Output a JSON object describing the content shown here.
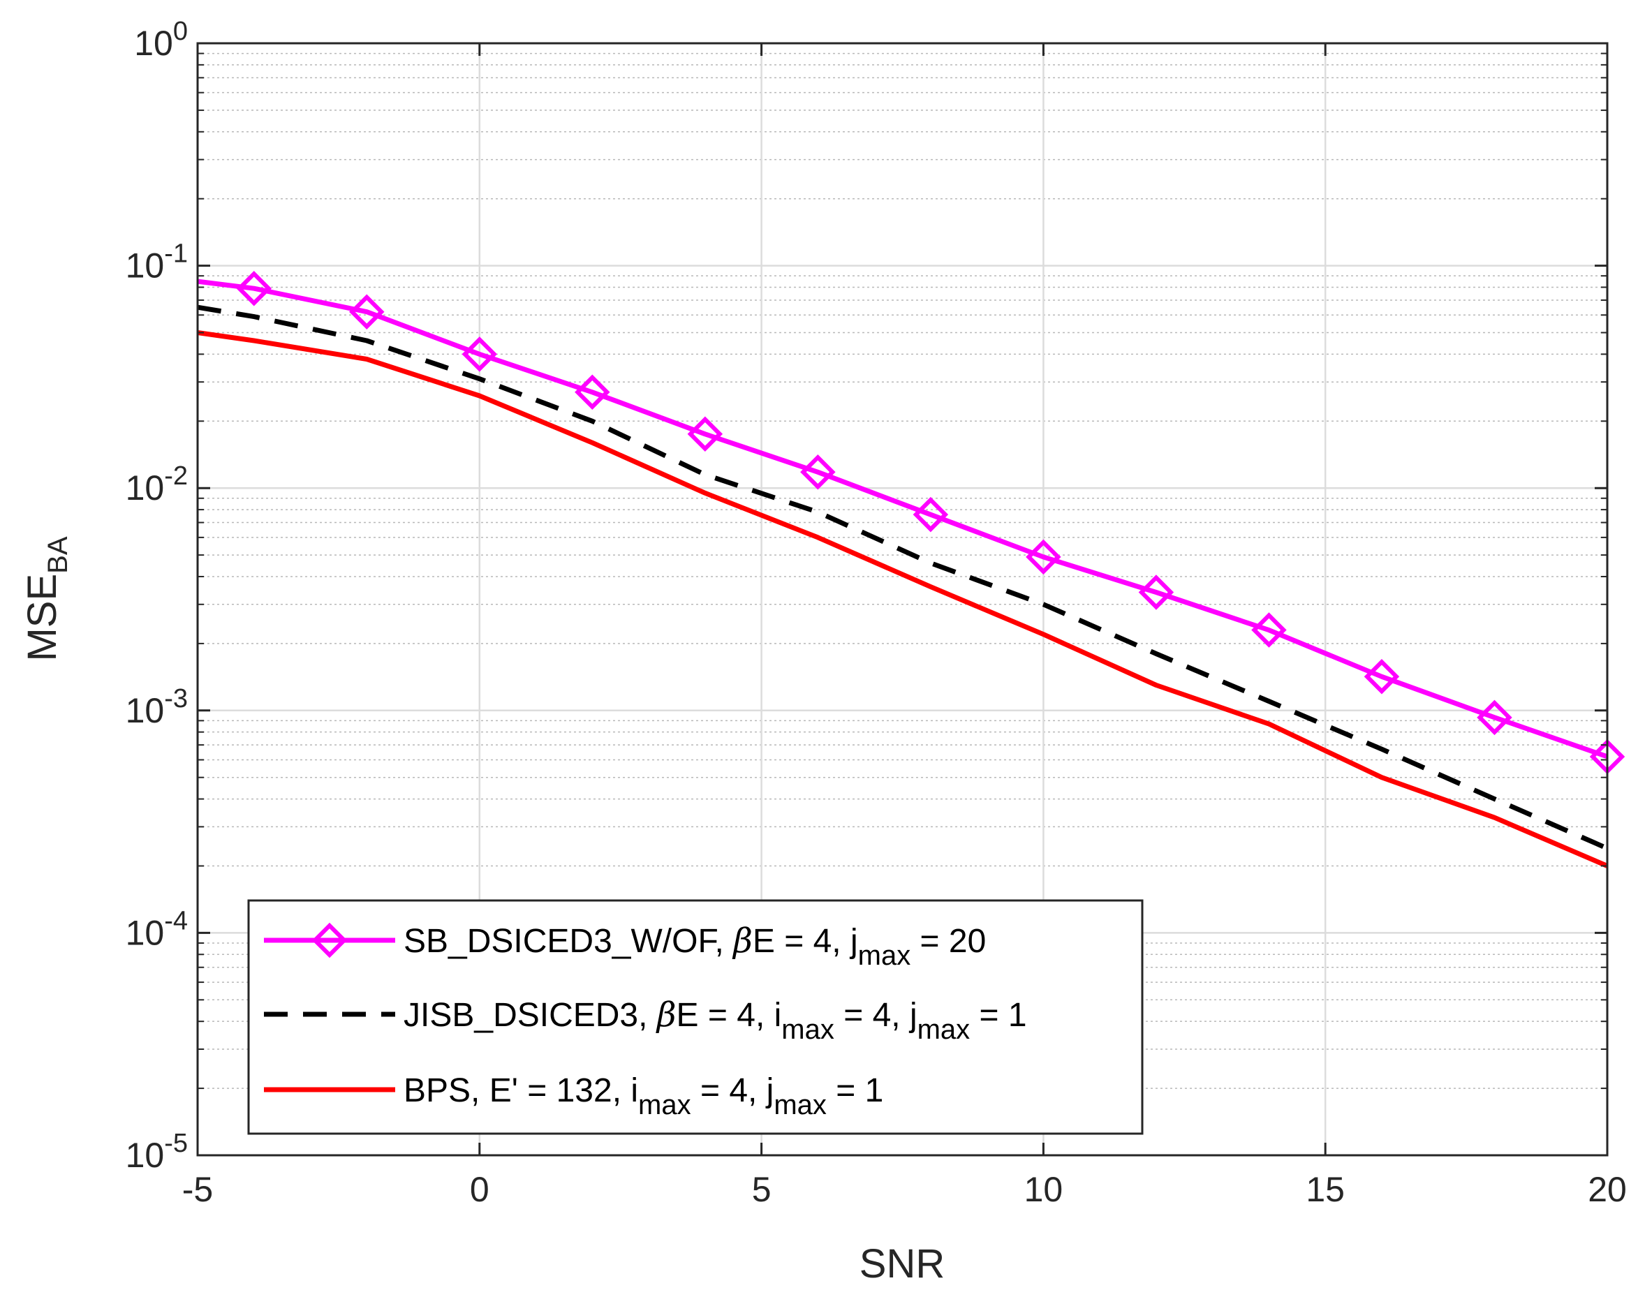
{
  "chart_data": {
    "type": "line",
    "title": "",
    "xlabel": "SNR",
    "ylabel": {
      "main": "MSE",
      "subscript": "BA"
    },
    "xlim": [
      -5,
      20
    ],
    "ylim": [
      1e-05,
      1
    ],
    "yscale": "log",
    "grid": true,
    "legend_position": "bottom-left",
    "x_ticks": [
      -5,
      0,
      5,
      10,
      15,
      20
    ],
    "x_tick_labels": [
      "-5",
      "0",
      "5",
      "10",
      "15",
      "20"
    ],
    "y_ticks": [
      {
        "value": 1,
        "base": "10",
        "exp": "0"
      },
      {
        "value": 0.1,
        "base": "10",
        "exp": "-1"
      },
      {
        "value": 0.01,
        "base": "10",
        "exp": "-2"
      },
      {
        "value": 0.001,
        "base": "10",
        "exp": "-3"
      },
      {
        "value": 0.0001,
        "base": "10",
        "exp": "-4"
      },
      {
        "value": 1e-05,
        "base": "10",
        "exp": "-5"
      }
    ],
    "series": [
      {
        "name": "SB_DSICED3_W/OF, βE = 4, jmax = 20",
        "color": "#ff00ff",
        "style": "solid",
        "marker": "diamond",
        "x": [
          -5,
          -4,
          -2,
          0,
          2,
          4,
          6,
          8,
          10,
          12,
          14,
          16,
          18,
          20
        ],
        "y": [
          0.085,
          0.079,
          0.062,
          0.04,
          0.027,
          0.0175,
          0.0118,
          0.0076,
          0.0049,
          0.0034,
          0.0023,
          0.00142,
          0.00093,
          0.00062
        ],
        "legend_parts": [
          {
            "t": "SB_DSICED3_W/OF, "
          },
          {
            "t": "β",
            "greek": true
          },
          {
            "t": "E = 4, j"
          },
          {
            "t": "max",
            "sub": true
          },
          {
            "t": " = 20"
          }
        ]
      },
      {
        "name": "JISB_DSICED3, βE = 4, imax = 4, jmax = 1",
        "color": "#000000",
        "style": "dashed",
        "marker": "none",
        "x": [
          -5,
          -4,
          -2,
          0,
          2,
          4,
          6,
          8,
          10,
          12,
          14,
          16,
          18,
          20
        ],
        "y": [
          0.065,
          0.059,
          0.046,
          0.031,
          0.02,
          0.0115,
          0.0078,
          0.0046,
          0.003,
          0.0018,
          0.0011,
          0.00067,
          0.0004,
          0.00024
        ],
        "legend_parts": [
          {
            "t": "JISB_DSICED3, "
          },
          {
            "t": "β",
            "greek": true
          },
          {
            "t": "E = 4, i"
          },
          {
            "t": "max",
            "sub": true
          },
          {
            "t": " = 4, j"
          },
          {
            "t": "max",
            "sub": true
          },
          {
            "t": " = 1"
          }
        ]
      },
      {
        "name": "BPS, E' = 132, imax = 4, jmax = 1",
        "color": "#ff0000",
        "style": "solid",
        "marker": "none",
        "x": [
          -5,
          -4,
          -2,
          0,
          2,
          4,
          6,
          8,
          10,
          12,
          14,
          16,
          18,
          20
        ],
        "y": [
          0.05,
          0.046,
          0.038,
          0.026,
          0.016,
          0.0095,
          0.006,
          0.0036,
          0.0022,
          0.0013,
          0.00087,
          0.0005,
          0.00033,
          0.0002
        ],
        "legend_parts": [
          {
            "t": "BPS, E' = 132, i"
          },
          {
            "t": "max",
            "sub": true
          },
          {
            "t": " = 4, j"
          },
          {
            "t": "max",
            "sub": true
          },
          {
            "t": " = 1"
          }
        ]
      }
    ]
  }
}
